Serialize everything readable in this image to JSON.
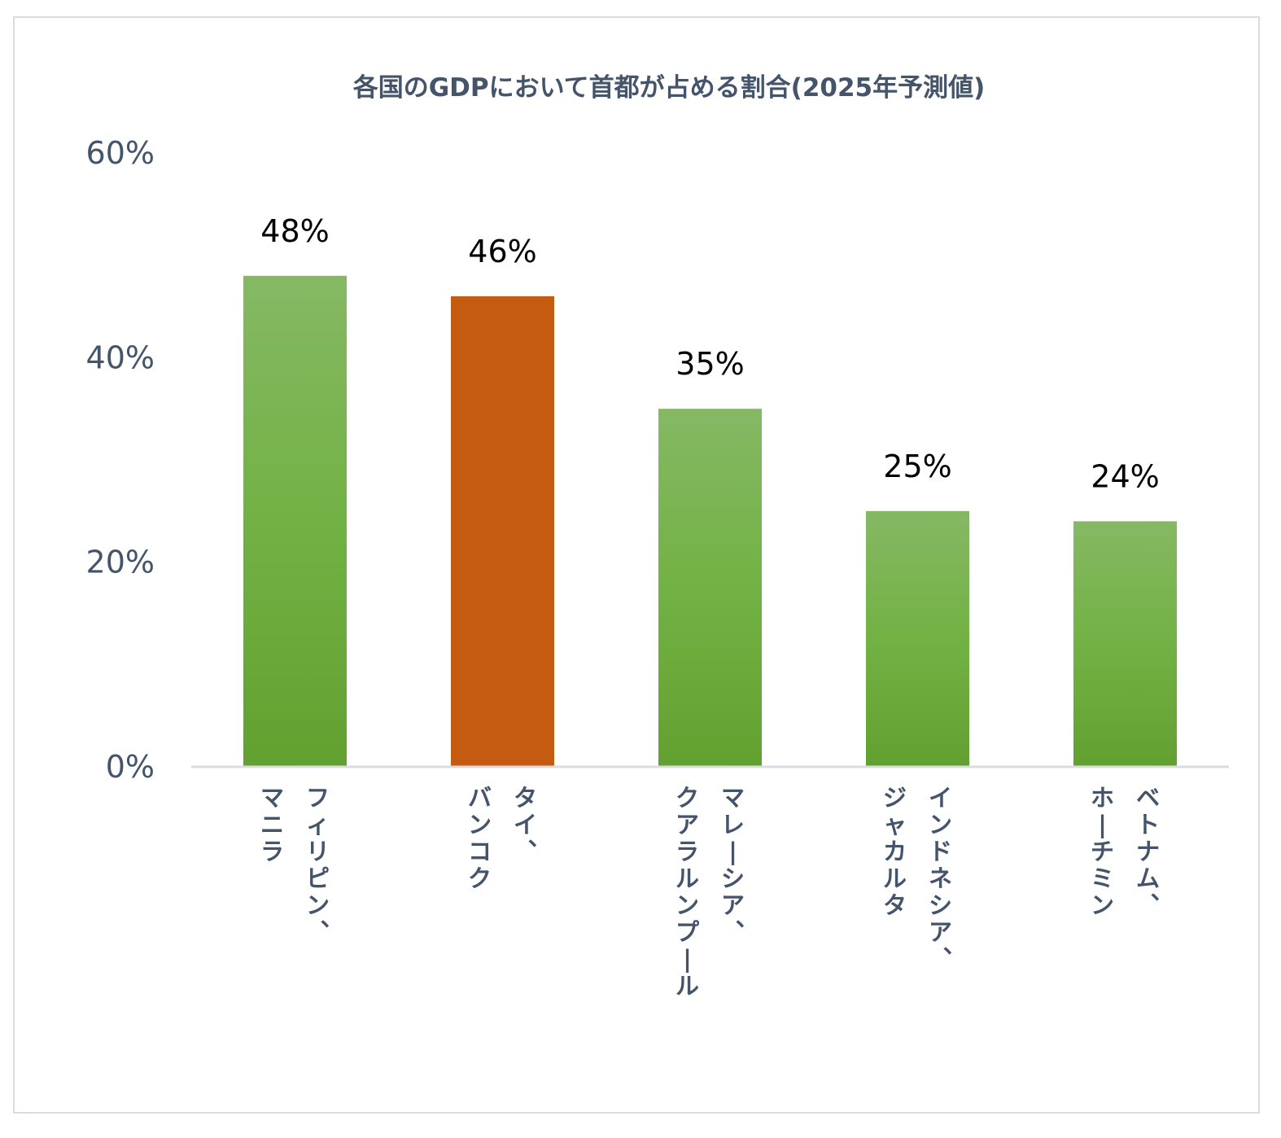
{
  "chart_data": {
    "type": "bar",
    "title": "各国のGDPにおいて首都が占める割合(2025年予測値)",
    "xlabel": "",
    "ylabel": "",
    "ylim": [
      0,
      60
    ],
    "yticks": [
      "0%",
      "20%",
      "40%",
      "60%"
    ],
    "categories": [
      [
        "フィリピン、",
        "マニラ"
      ],
      [
        "タイ、",
        "バンコク"
      ],
      [
        "マレーシア、",
        "クアラルンプール"
      ],
      [
        "インドネシア、",
        "ジャカルタ"
      ],
      [
        "ベトナム、",
        "ホーチミン"
      ]
    ],
    "values": [
      48,
      46,
      35,
      25,
      24
    ],
    "data_labels": [
      "48%",
      "46%",
      "35%",
      "25%",
      "24%"
    ],
    "highlight_index": 1,
    "grid": false,
    "legend": "none",
    "colors": {
      "bar_top": "#86b864",
      "bar_mid": "#72b244",
      "bar_bottom": "#62a030",
      "highlight": "#c55a11",
      "axis": "#d9dde3",
      "text": "#44546a",
      "data_label": "#000000"
    }
  }
}
